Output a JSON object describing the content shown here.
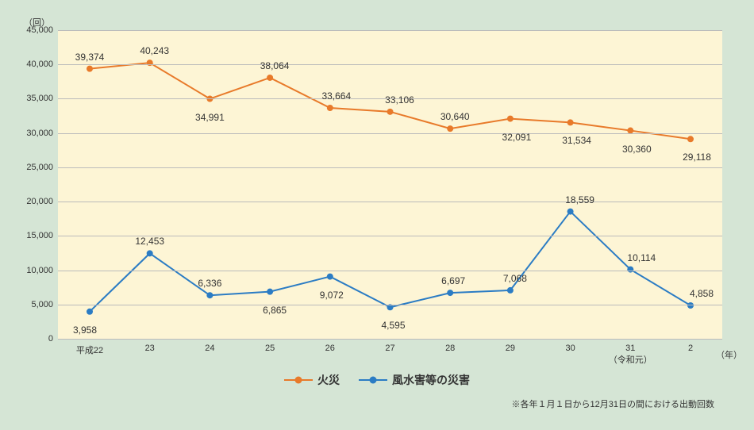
{
  "chart": {
    "type": "line",
    "y_axis_label": "（回）",
    "x_axis_unit": "（年）",
    "background_color": "#d5e5d5",
    "plot_background_color": "#fdf5d5",
    "grid_color": "#bbbbbb",
    "ylim": [
      0,
      45000
    ],
    "ytick_step": 5000,
    "categories": [
      "平成22",
      "23",
      "24",
      "25",
      "26",
      "27",
      "28",
      "29",
      "30",
      "31\n（令和元）",
      "2"
    ],
    "series": [
      {
        "name": "火災",
        "color": "#e87a2a",
        "marker_color": "#e87a2a",
        "line_width": 2,
        "marker_size": 8,
        "values": [
          39374,
          40243,
          34991,
          38064,
          33664,
          33106,
          30640,
          32091,
          31534,
          30360,
          29118
        ],
        "label_offsets": [
          {
            "dx": 0,
            "dy": -22
          },
          {
            "dx": 6,
            "dy": -22
          },
          {
            "dx": 0,
            "dy": 16
          },
          {
            "dx": 6,
            "dy": -22
          },
          {
            "dx": 8,
            "dy": -22
          },
          {
            "dx": 12,
            "dy": -22
          },
          {
            "dx": 6,
            "dy": -22
          },
          {
            "dx": 8,
            "dy": 16
          },
          {
            "dx": 8,
            "dy": 16
          },
          {
            "dx": 8,
            "dy": 16
          },
          {
            "dx": 8,
            "dy": 16
          }
        ]
      },
      {
        "name": "風水害等の災害",
        "color": "#2b7cc4",
        "marker_color": "#2b7cc4",
        "line_width": 2,
        "marker_size": 8,
        "values": [
          3958,
          12453,
          6336,
          6865,
          9072,
          4595,
          6697,
          7068,
          18559,
          10114,
          4858
        ],
        "label_offsets": [
          {
            "dx": -6,
            "dy": 16
          },
          {
            "dx": 0,
            "dy": -22
          },
          {
            "dx": 0,
            "dy": -22
          },
          {
            "dx": 6,
            "dy": 16
          },
          {
            "dx": 2,
            "dy": 16
          },
          {
            "dx": 4,
            "dy": 16
          },
          {
            "dx": 4,
            "dy": -22
          },
          {
            "dx": 6,
            "dy": -22
          },
          {
            "dx": 12,
            "dy": -22
          },
          {
            "dx": 14,
            "dy": -22
          },
          {
            "dx": 14,
            "dy": -22
          }
        ]
      }
    ],
    "footnote": "※各年１月１日から12月31日の間における出動回数"
  }
}
